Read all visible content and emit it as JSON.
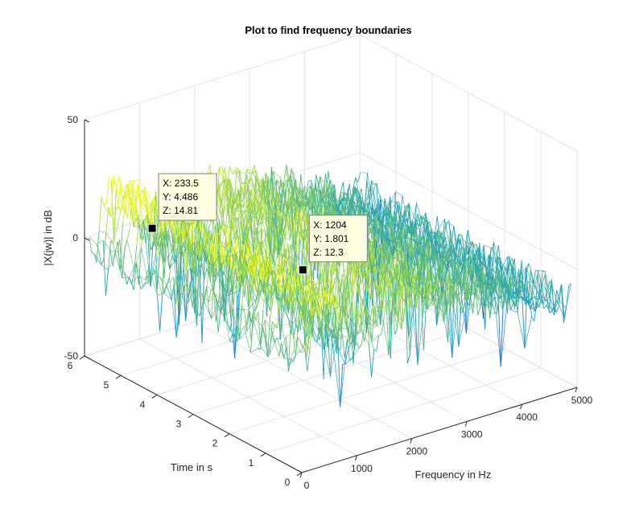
{
  "chart_data": {
    "type": "mesh3d",
    "title": "Plot to find frequency boundaries",
    "xlabel": "Frequency in Hz",
    "ylabel": "Time in s",
    "zlabel": "|X(jw)| in dB",
    "xlim": [
      0,
      5000
    ],
    "ylim": [
      0,
      6
    ],
    "zlim": [
      -50,
      50
    ],
    "x_ticks": [
      "0",
      "1000",
      "2000",
      "3000",
      "4000",
      "5000"
    ],
    "y_ticks": [
      "0",
      "1",
      "2",
      "3",
      "4",
      "5",
      "6"
    ],
    "z_ticks": [
      "-50",
      "0",
      "50"
    ],
    "grid": true,
    "colormap": "parula",
    "surface_profile": {
      "description_free": true,
      "freq_hz": [
        0,
        200,
        240,
        600,
        1000,
        1150,
        1204,
        1250,
        1600,
        2000,
        2400,
        2800,
        3200,
        3600,
        4000,
        4400,
        4900
      ],
      "mean_level_db": [
        -2,
        -3,
        18,
        18,
        -6,
        -8,
        16,
        -4,
        6,
        10,
        8,
        3,
        0,
        -2,
        -6,
        -10,
        -14
      ]
    },
    "datatips": [
      {
        "x_label": "X: 233.5",
        "y_label": "Y: 4.486",
        "z_label": "Z: 14.81",
        "x": 233.5,
        "y": 4.486,
        "z": 14.81
      },
      {
        "x_label": "X: 1204",
        "y_label": "Y: 1.801",
        "z_label": "Z: 12.3",
        "x": 1204,
        "y": 1.801,
        "z": 12.3
      }
    ]
  }
}
